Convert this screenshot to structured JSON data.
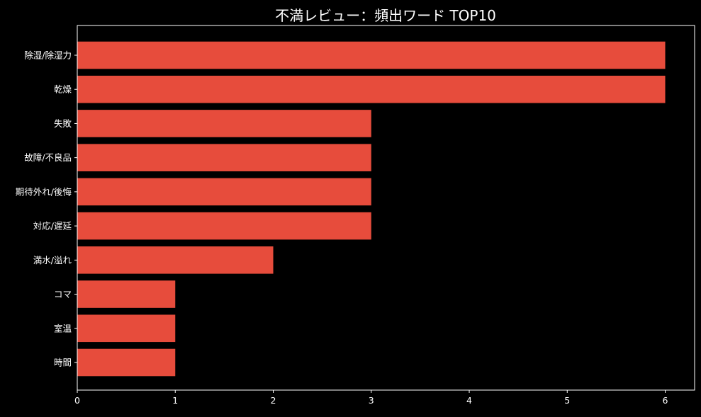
{
  "chart_data": {
    "type": "bar",
    "orientation": "horizontal",
    "title": "不満レビュー：頻出ワード TOP10",
    "xlabel": "",
    "ylabel": "",
    "categories": [
      "除湿/除湿力",
      "乾燥",
      "失敗",
      "故障/不良品",
      "期待外れ/後悔",
      "対応/遅延",
      "満水/溢れ",
      "コマ",
      "室温",
      "時間"
    ],
    "values": [
      6,
      6,
      3,
      3,
      3,
      3,
      2,
      1,
      1,
      1
    ],
    "xlim": [
      0,
      6.3
    ],
    "xticks": [
      "0",
      "1",
      "2",
      "3",
      "4",
      "5",
      "6"
    ],
    "grid": false,
    "bar_color": "#e74c3c",
    "background": "#000000",
    "axis_color": "#ffffff"
  }
}
